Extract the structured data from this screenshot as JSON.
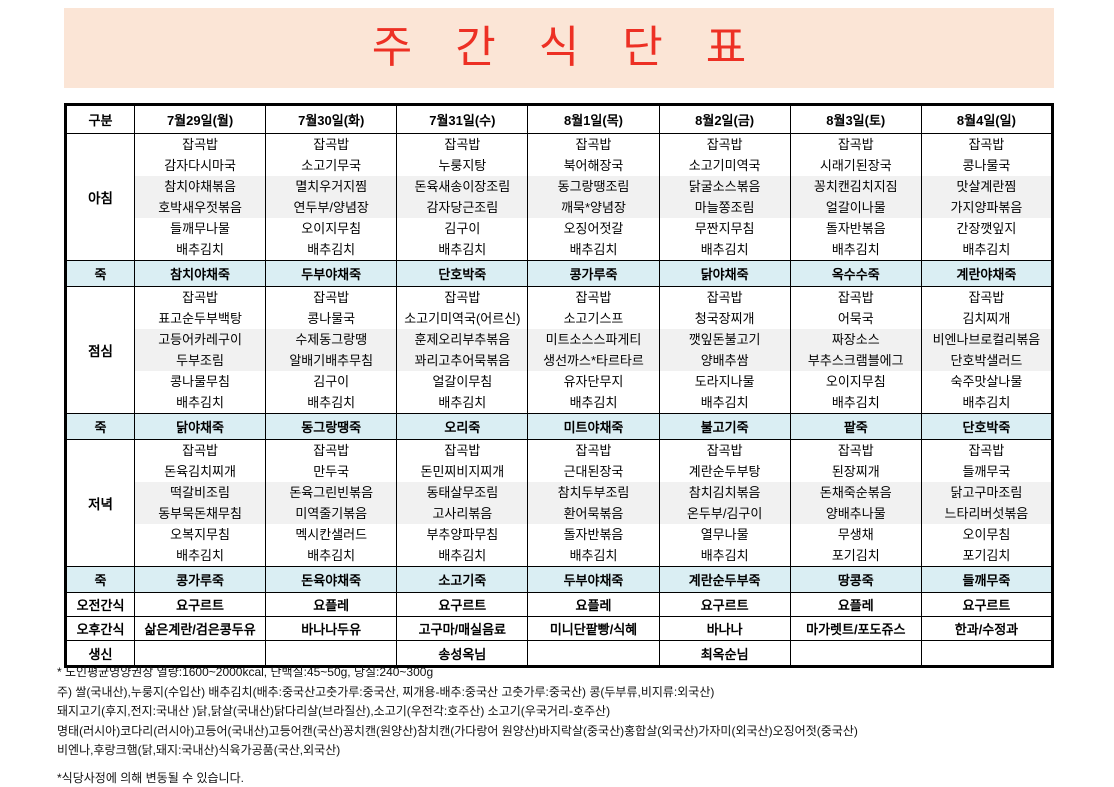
{
  "title": "주 간 식 단 표",
  "colors": {
    "title_text": "#ed3024",
    "banner_bg": "#fbe5d6",
    "porridge_row_bg": "#daeef3",
    "stripe_bg": "#f1f1f1",
    "border": "#000000"
  },
  "table": {
    "corner_label": "구분",
    "days": [
      "7월29일(월)",
      "7월30일(화)",
      "7월31일(수)",
      "8월1일(목)",
      "8월2일(금)",
      "8월3일(토)",
      "8월4일(일)"
    ],
    "rows": [
      {
        "id": "breakfast",
        "type": "meal",
        "label": "아침",
        "cells": [
          [
            "잡곡밥",
            "감자다시마국",
            "참치야채볶음",
            "호박새우젓볶음",
            "들깨무나물",
            "배추김치"
          ],
          [
            "잡곡밥",
            "소고기무국",
            "멸치우거지찜",
            "연두부/양념장",
            "오이지무침",
            "배추김치"
          ],
          [
            "잡곡밥",
            "누룽지탕",
            "돈육새송이장조림",
            "감자당근조림",
            "김구이",
            "배추김치"
          ],
          [
            "잡곡밥",
            "북어해장국",
            "동그랑땡조림",
            "깨묵*양념장",
            "오징어젓갈",
            "배추김치"
          ],
          [
            "잡곡밥",
            "소고기미역국",
            "닭굴소스볶음",
            "마늘쫑조림",
            "무짠지무침",
            "배추김치"
          ],
          [
            "잡곡밥",
            "시래기된장국",
            "꽁치캔김치지짐",
            "얼갈이나물",
            "돌자반볶음",
            "배추김치"
          ],
          [
            "잡곡밥",
            "콩나물국",
            "맛살계란찜",
            "가지양파볶음",
            "간장깻잎지",
            "배추김치"
          ]
        ]
      },
      {
        "id": "porridge-1",
        "type": "porridge",
        "label": "죽",
        "cells": [
          "참치야채죽",
          "두부야채죽",
          "단호박죽",
          "콩가루죽",
          "닭야채죽",
          "옥수수죽",
          "계란야채죽"
        ]
      },
      {
        "id": "lunch",
        "type": "meal",
        "label": "점심",
        "cells": [
          [
            "잡곡밥",
            "표고순두부백탕",
            "고등어카레구이",
            "두부조림",
            "콩나물무침",
            "배추김치"
          ],
          [
            "잡곡밥",
            "콩나물국",
            "수제동그랑땡",
            "알배기배추무침",
            "김구이",
            "배추김치"
          ],
          [
            "잡곡밥",
            "소고기미역국(어르신)",
            "훈제오리부추볶음",
            "꽈리고추어묵볶음",
            "얼갈이무침",
            "배추김치"
          ],
          [
            "잡곡밥",
            "소고기스프",
            "미트소스스파게티",
            "생선까스*타르타르",
            "유자단무지",
            "배추김치"
          ],
          [
            "잡곡밥",
            "청국장찌개",
            "깻잎돈불고기",
            "양배추쌈",
            "도라지나물",
            "배추김치"
          ],
          [
            "잡곡밥",
            "어묵국",
            "짜장소스",
            "부추스크램블에그",
            "오이지무침",
            "배추김치"
          ],
          [
            "잡곡밥",
            "김치찌개",
            "비엔나브로컬리볶음",
            "단호박샐러드",
            "숙주맛살나물",
            "배추김치"
          ]
        ]
      },
      {
        "id": "porridge-2",
        "type": "porridge",
        "label": "죽",
        "cells": [
          "닭야채죽",
          "동그랑땡죽",
          "오리죽",
          "미트야채죽",
          "불고기죽",
          "팥죽",
          "단호박죽"
        ]
      },
      {
        "id": "dinner",
        "type": "meal",
        "label": "저녁",
        "cells": [
          [
            "잡곡밥",
            "돈육김치찌개",
            "떡갈비조림",
            "동부묵돈채무침",
            "오복지무침",
            "배추김치"
          ],
          [
            "잡곡밥",
            "만두국",
            "돈육그린빈볶음",
            "미역줄기볶음",
            "멕시칸샐러드",
            "배추김치"
          ],
          [
            "잡곡밥",
            "돈민찌비지찌개",
            "동태살무조림",
            "고사리볶음",
            "부추양파무침",
            "배추김치"
          ],
          [
            "잡곡밥",
            "근대된장국",
            "참치두부조림",
            "환어묵볶음",
            "돌자반볶음",
            "배추김치"
          ],
          [
            "잡곡밥",
            "계란순두부탕",
            "참치김치볶음",
            "온두부/김구이",
            "열무나물",
            "배추김치"
          ],
          [
            "잡곡밥",
            "된장찌개",
            "돈채죽순볶음",
            "양배추나물",
            "무생채",
            "포기김치"
          ],
          [
            "잡곡밥",
            "들깨무국",
            "닭고구마조림",
            "느타리버섯볶음",
            "오이무침",
            "포기김치"
          ]
        ]
      },
      {
        "id": "porridge-3",
        "type": "porridge",
        "label": "죽",
        "cells": [
          "콩가루죽",
          "돈육야채죽",
          "소고기죽",
          "두부야채죽",
          "계란순두부죽",
          "땅콩죽",
          "들깨무죽"
        ]
      },
      {
        "id": "morning-snack",
        "type": "snack",
        "label": "오전간식",
        "cells": [
          "요구르트",
          "요플레",
          "요구르트",
          "요플레",
          "요구르트",
          "요플레",
          "요구르트"
        ]
      },
      {
        "id": "afternoon-snack",
        "type": "snack",
        "label": "오후간식",
        "cells": [
          "삶은계란/검은콩두유",
          "바나나두유",
          "고구마/매실음료",
          "미니단팥빵/식혜",
          "바나나",
          "마가렛트/포도쥬스",
          "한과/수정과"
        ]
      },
      {
        "id": "birthday",
        "type": "birthday",
        "label": "생신",
        "cells": [
          "",
          "",
          "송성옥님",
          "",
          "최옥순님",
          "",
          ""
        ]
      }
    ]
  },
  "footer": {
    "lines": [
      "* 노인평균영양권장 열량:1600~2000kcal, 단백질:45~50g, 당질:240~300g",
      "주) 쌀(국내산),누룽지(수입산) 배추김치(배추:중국산고춧가루:중국산, 찌개용-배추:중국산 고춧가루:중국산) 콩(두부류,비지류:외국산)",
      "돼지고기(후지,전지:국내산 )닭,닭살(국내산)닭다리살(브라질산),소고기(우전각:호주산) 소고기(우국거리-호주산)",
      "명태(러시아)코다리(러시아)고등어(국내산)고등어캔(국산)꽁치캔(원양산)참치캔(가다랑어 원양산)바지락살(중국산)홍합살(외국산)가자미(외국산)오징어젓(중국산)",
      "비엔나,후랑크햄(닭,돼지:국내산)식육가공품(국산,외국산)",
      "*식당사정에 의해 변동될 수 있습니다."
    ]
  }
}
